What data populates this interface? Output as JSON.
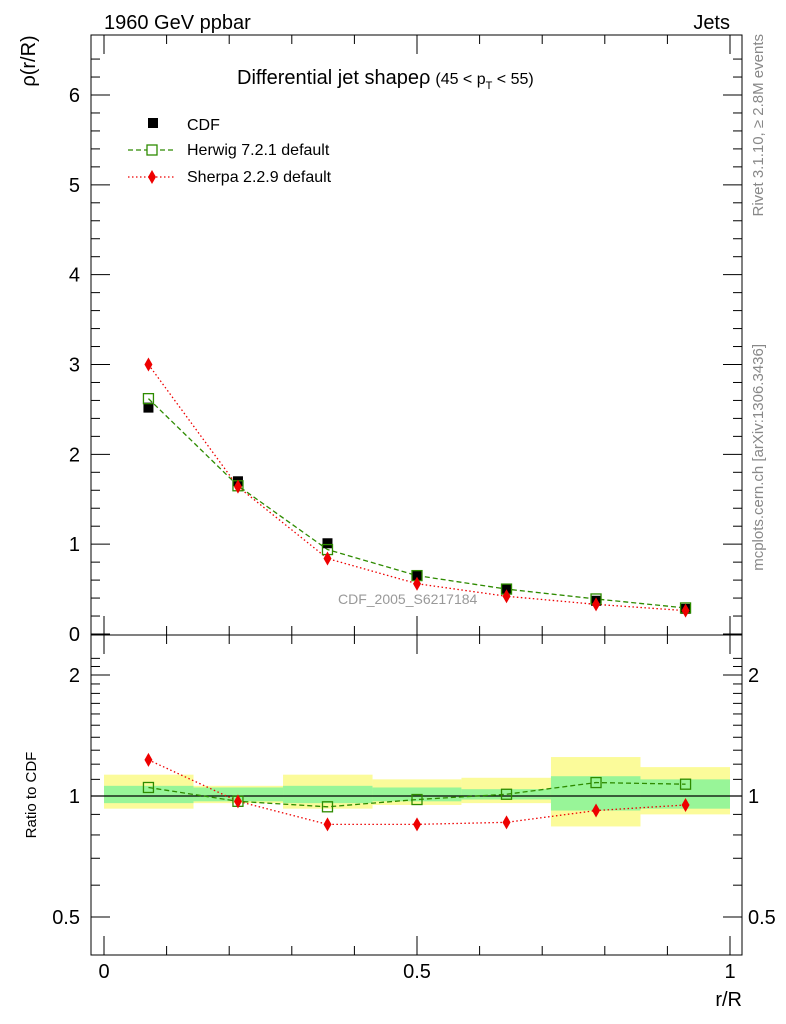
{
  "header": {
    "energy": "1960 GeV ppbar",
    "category": "Jets"
  },
  "side_labels": {
    "rivet": "Rivet 3.1.10, ≥ 2.8M events",
    "mcplots": "mcplots.cern.ch [arXiv:1306.3436]"
  },
  "watermark": "CDF_2005_S6217184",
  "title": {
    "main": "Differential jet shape",
    "rho": "ρ",
    "open": "(45 < p",
    "sub": "T",
    "close": " < 55)"
  },
  "colors": {
    "cdf": "#000000",
    "herwig": "#2e8b00",
    "sherpa": "#ee0000",
    "band_inner": "#98f598",
    "band_outer": "#fbfb9a"
  },
  "chart_data": [
    {
      "type": "scatter",
      "name": "main",
      "ylabel": "ρ(r/R)",
      "xlim": [
        0,
        1
      ],
      "ylim": [
        0,
        6.65
      ],
      "yticks": [
        0,
        1,
        2,
        3,
        4,
        5,
        6
      ],
      "ytick_labels": [
        "0",
        "1",
        "2",
        "3",
        "4",
        "5",
        "6"
      ],
      "x": [
        0.071,
        0.214,
        0.357,
        0.5,
        0.643,
        0.786,
        0.929
      ],
      "series": [
        {
          "name": "CDF",
          "marker": "filled-square",
          "values": [
            2.52,
            1.7,
            1.01,
            0.65,
            0.5,
            0.37,
            0.28
          ]
        },
        {
          "name": "Herwig 7.2.1 default",
          "marker": "open-square",
          "values": [
            2.62,
            1.65,
            0.94,
            0.65,
            0.5,
            0.39,
            0.29
          ]
        },
        {
          "name": "Sherpa 2.2.9 default",
          "marker": "diamond",
          "values": [
            3.0,
            1.64,
            0.84,
            0.56,
            0.42,
            0.33,
            0.26
          ]
        }
      ]
    },
    {
      "type": "scatter",
      "name": "ratio",
      "ylabel": "Ratio to CDF",
      "xlabel": "r/R",
      "xlim": [
        0,
        1
      ],
      "ylim": [
        0.4,
        2.35
      ],
      "yticks": [
        0.5,
        1,
        2
      ],
      "ytick_labels": [
        "0.5",
        "1",
        "2"
      ],
      "xticks": [
        0,
        0.5,
        1
      ],
      "xtick_labels": [
        "0",
        "0.5",
        "1"
      ],
      "x": [
        0.071,
        0.214,
        0.357,
        0.5,
        0.643,
        0.786,
        0.929
      ],
      "bin_edges": [
        0,
        0.143,
        0.286,
        0.429,
        0.571,
        0.714,
        0.857,
        1.0
      ],
      "band_inner": [
        [
          0.96,
          1.06
        ],
        [
          0.97,
          1.05
        ],
        [
          0.96,
          1.06
        ],
        [
          0.97,
          1.05
        ],
        [
          0.98,
          1.04
        ],
        [
          0.92,
          1.12
        ],
        [
          0.93,
          1.1
        ]
      ],
      "band_outer": [
        [
          0.93,
          1.13
        ],
        [
          0.96,
          1.06
        ],
        [
          0.93,
          1.13
        ],
        [
          0.95,
          1.1
        ],
        [
          0.96,
          1.11
        ],
        [
          0.84,
          1.25
        ],
        [
          0.9,
          1.18
        ]
      ],
      "series": [
        {
          "name": "Herwig 7.2.1 default",
          "values": [
            1.05,
            0.97,
            0.94,
            0.98,
            1.01,
            1.08,
            1.07
          ]
        },
        {
          "name": "Sherpa 2.2.9 default",
          "values": [
            1.23,
            0.97,
            0.85,
            0.85,
            0.86,
            0.92,
            0.95
          ]
        }
      ]
    }
  ]
}
